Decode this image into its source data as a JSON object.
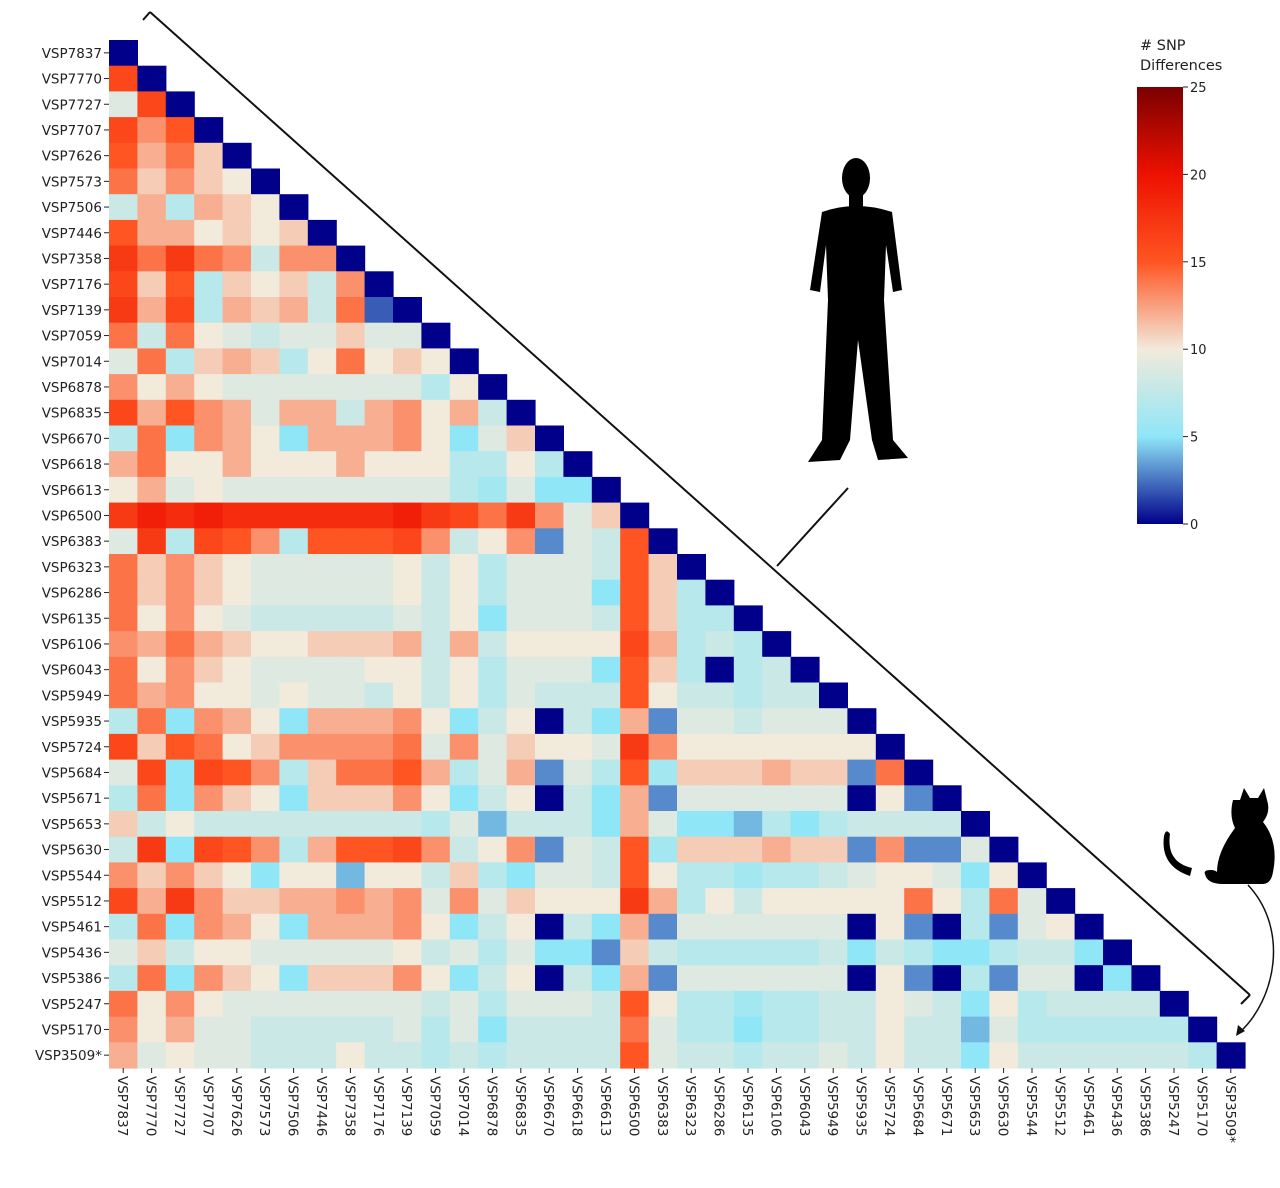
{
  "chart_data": {
    "type": "heatmap",
    "colorbar": {
      "title_line1": "# SNP",
      "title_line2": "Differences",
      "range": [
        0,
        25
      ],
      "ticks": [
        "0",
        "5",
        "10",
        "15",
        "20",
        "25"
      ],
      "colors": [
        "#00008b",
        "#8fe6f7",
        "#f2eadb",
        "#ff5522",
        "#ee1100",
        "#7a0000"
      ]
    },
    "labels": [
      "VSP7837",
      "VSP7770",
      "VSP7727",
      "VSP7707",
      "VSP7626",
      "VSP7573",
      "VSP7506",
      "VSP7446",
      "VSP7358",
      "VSP7176",
      "VSP7139",
      "VSP7059",
      "VSP7014",
      "VSP6878",
      "VSP6835",
      "VSP6670",
      "VSP6618",
      "VSP6613",
      "VSP6500",
      "VSP6383",
      "VSP6323",
      "VSP6286",
      "VSP6135",
      "VSP6106",
      "VSP6043",
      "VSP5949",
      "VSP5935",
      "VSP5724",
      "VSP5684",
      "VSP5671",
      "VSP5653",
      "VSP5630",
      "VSP5544",
      "VSP5512",
      "VSP5461",
      "VSP5436",
      "VSP5386",
      "VSP5247",
      "VSP5170",
      "VSP3509*"
    ],
    "diagonal_value": 0,
    "lower_triangle": [
      [],
      [
        16
      ],
      [
        9,
        16
      ],
      [
        16,
        13,
        15
      ],
      [
        15,
        12,
        14,
        11
      ],
      [
        14,
        11,
        13,
        11,
        10
      ],
      [
        8,
        12,
        7,
        12,
        11,
        10
      ],
      [
        15,
        12,
        12,
        10,
        11,
        10,
        11
      ],
      [
        17,
        14,
        17,
        14,
        13,
        8,
        13,
        13
      ],
      [
        16,
        11,
        15,
        7,
        11,
        10,
        11,
        8,
        13
      ],
      [
        17,
        12,
        16,
        7,
        12,
        11,
        12,
        8,
        14,
        2
      ],
      [
        14,
        8,
        14,
        10,
        9,
        8,
        9,
        9,
        11,
        9,
        9
      ],
      [
        9,
        14,
        7,
        11,
        12,
        11,
        7,
        10,
        14,
        10,
        11,
        10
      ],
      [
        13,
        10,
        12,
        10,
        9,
        9,
        9,
        9,
        9,
        9,
        9,
        7,
        10
      ],
      [
        16,
        12,
        15,
        13,
        12,
        9,
        12,
        12,
        8,
        12,
        13,
        10,
        12,
        8
      ],
      [
        7,
        14,
        5,
        13,
        12,
        10,
        5,
        12,
        12,
        12,
        13,
        10,
        5,
        9,
        11
      ],
      [
        12,
        14,
        10,
        10,
        12,
        10,
        10,
        10,
        12,
        10,
        10,
        10,
        7,
        7,
        10,
        7
      ],
      [
        10,
        12,
        9,
        10,
        9,
        9,
        9,
        9,
        9,
        9,
        9,
        9,
        7,
        6,
        9,
        5,
        5
      ],
      [
        17,
        19,
        18,
        19,
        18,
        18,
        18,
        18,
        18,
        18,
        19,
        17,
        16,
        14,
        17,
        13,
        9,
        11
      ],
      [
        9,
        17,
        7,
        16,
        15,
        13,
        7,
        15,
        15,
        15,
        16,
        13,
        8,
        10,
        13,
        3,
        9,
        8,
        15
      ],
      [
        14,
        11,
        13,
        11,
        10,
        9,
        9,
        9,
        9,
        9,
        10,
        8,
        10,
        7,
        9,
        9,
        9,
        8,
        15,
        11
      ],
      [
        14,
        11,
        13,
        11,
        10,
        9,
        9,
        9,
        9,
        9,
        10,
        8,
        10,
        7,
        9,
        9,
        9,
        5,
        15,
        11,
        7
      ],
      [
        14,
        10,
        13,
        10,
        9,
        8,
        8,
        8,
        8,
        8,
        9,
        8,
        10,
        5,
        9,
        9,
        9,
        8,
        15,
        11,
        7,
        7
      ],
      [
        13,
        12,
        14,
        12,
        11,
        10,
        10,
        11,
        11,
        11,
        12,
        8,
        12,
        8,
        10,
        10,
        10,
        10,
        16,
        12,
        7,
        8,
        7
      ],
      [
        14,
        10,
        13,
        11,
        10,
        9,
        9,
        9,
        9,
        10,
        10,
        8,
        10,
        7,
        9,
        9,
        9,
        5,
        15,
        11,
        7,
        0,
        7,
        8
      ],
      [
        14,
        12,
        13,
        10,
        10,
        9,
        10,
        9,
        9,
        8,
        10,
        8,
        10,
        7,
        9,
        8,
        8,
        8,
        15,
        10,
        8,
        8,
        7,
        8,
        8
      ],
      [
        7,
        14,
        5,
        13,
        12,
        10,
        5,
        12,
        12,
        12,
        13,
        10,
        5,
        8,
        10,
        0,
        8,
        5,
        12,
        3,
        9,
        9,
        8,
        9,
        9,
        9
      ],
      [
        16,
        11,
        15,
        14,
        10,
        11,
        13,
        13,
        13,
        13,
        14,
        9,
        13,
        9,
        11,
        10,
        10,
        9,
        17,
        13,
        10,
        10,
        10,
        10,
        10,
        10,
        10
      ],
      [
        9,
        16,
        5,
        16,
        15,
        13,
        7,
        11,
        14,
        14,
        15,
        12,
        7,
        9,
        12,
        3,
        9,
        7,
        15,
        6,
        11,
        11,
        11,
        12,
        11,
        11,
        3,
        14
      ],
      [
        7,
        14,
        5,
        13,
        11,
        10,
        5,
        11,
        11,
        11,
        13,
        10,
        5,
        8,
        10,
        0,
        8,
        5,
        12,
        3,
        9,
        9,
        9,
        9,
        9,
        9,
        0,
        10,
        3
      ],
      [
        11,
        8,
        10,
        8,
        8,
        8,
        8,
        8,
        8,
        8,
        8,
        7,
        9,
        4,
        8,
        8,
        8,
        5,
        12,
        9,
        5,
        5,
        4,
        7,
        5,
        7,
        8,
        8,
        8,
        8
      ],
      [
        8,
        17,
        5,
        16,
        15,
        13,
        7,
        12,
        15,
        15,
        16,
        13,
        8,
        10,
        13,
        3,
        9,
        8,
        15,
        6,
        11,
        11,
        11,
        12,
        11,
        11,
        3,
        13,
        3,
        3,
        9
      ],
      [
        13,
        11,
        13,
        11,
        10,
        5,
        10,
        10,
        4,
        10,
        10,
        8,
        11,
        7,
        5,
        9,
        9,
        8,
        15,
        10,
        7,
        7,
        6,
        7,
        7,
        8,
        9,
        10,
        10,
        9,
        5,
        10
      ],
      [
        16,
        12,
        17,
        13,
        11,
        11,
        12,
        12,
        13,
        12,
        13,
        9,
        13,
        9,
        11,
        10,
        10,
        10,
        17,
        12,
        7,
        10,
        8,
        10,
        10,
        10,
        10,
        10,
        14,
        10,
        7,
        14,
        9
      ],
      [
        7,
        14,
        5,
        13,
        12,
        10,
        5,
        12,
        12,
        12,
        13,
        10,
        5,
        8,
        10,
        0,
        8,
        5,
        12,
        3,
        9,
        9,
        9,
        9,
        9,
        9,
        0,
        10,
        3,
        0,
        7,
        3,
        9,
        10
      ],
      [
        9,
        11,
        8,
        10,
        10,
        9,
        9,
        9,
        9,
        9,
        10,
        8,
        9,
        7,
        9,
        5,
        5,
        3,
        11,
        8,
        7,
        7,
        7,
        7,
        7,
        8,
        5,
        8,
        7,
        5,
        5,
        7,
        8,
        8,
        5
      ],
      [
        7,
        14,
        5,
        13,
        11,
        10,
        5,
        11,
        11,
        11,
        13,
        10,
        5,
        8,
        10,
        0,
        8,
        5,
        12,
        3,
        9,
        9,
        9,
        9,
        9,
        9,
        0,
        10,
        3,
        0,
        7,
        3,
        9,
        9,
        0,
        5
      ],
      [
        14,
        10,
        13,
        10,
        9,
        9,
        9,
        9,
        9,
        9,
        9,
        8,
        9,
        7,
        9,
        9,
        9,
        8,
        15,
        10,
        7,
        7,
        6,
        7,
        7,
        8,
        8,
        10,
        9,
        8,
        5,
        10,
        7,
        8,
        8,
        8,
        8
      ],
      [
        13,
        10,
        12,
        9,
        9,
        8,
        8,
        8,
        8,
        8,
        9,
        7,
        9,
        5,
        8,
        8,
        8,
        8,
        14,
        9,
        7,
        7,
        5,
        7,
        7,
        8,
        8,
        10,
        8,
        8,
        4,
        9,
        7,
        7,
        7,
        7,
        7,
        7
      ],
      [
        12,
        9,
        10,
        9,
        9,
        8,
        8,
        8,
        10,
        8,
        8,
        7,
        8,
        7,
        8,
        8,
        8,
        8,
        15,
        9,
        8,
        8,
        7,
        8,
        8,
        9,
        8,
        10,
        8,
        8,
        5,
        10,
        8,
        8,
        8,
        8,
        8,
        8,
        7
      ]
    ]
  }
}
